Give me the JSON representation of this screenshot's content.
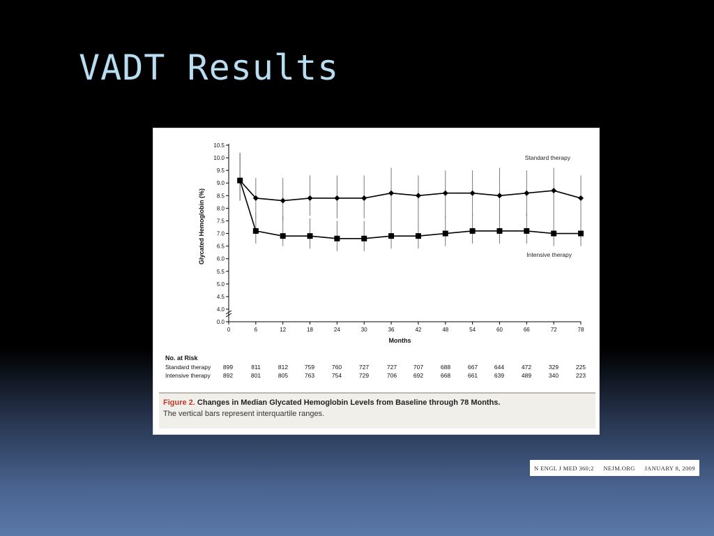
{
  "slide": {
    "title": "VADT Results"
  },
  "figure": {
    "caption_label": "Figure 2.",
    "caption_title": "Changes in Median Glycated Hemoglobin Levels from Baseline through 78 Months.",
    "caption_note": "The vertical bars represent interquartile ranges."
  },
  "chart_data": {
    "type": "line",
    "title": "",
    "xlabel": "Months",
    "ylabel": "Glycated Hemoglobin (%)",
    "xlim": [
      0,
      78
    ],
    "x_ticks": [
      0,
      6,
      12,
      18,
      24,
      30,
      36,
      42,
      48,
      54,
      60,
      66,
      72,
      78
    ],
    "y_ticks": [
      0.0,
      4.0,
      4.5,
      5.0,
      5.5,
      6.0,
      6.5,
      7.0,
      7.5,
      8.0,
      8.5,
      9.0,
      9.5,
      10.0,
      10.5
    ],
    "y_tick_labels": [
      "0.0",
      "4.0",
      "4.5",
      "5.0",
      "5.5",
      "6.0",
      "6.5",
      "7.0",
      "7.5",
      "8.0",
      "8.5",
      "9.0",
      "9.5",
      "10.0",
      "10.5"
    ],
    "axis_break": [
      0.0,
      4.0
    ],
    "grid": false,
    "series": [
      {
        "name": "Standard therapy",
        "marker": "diamond",
        "x": [
          2.5,
          6,
          12,
          18,
          24,
          30,
          36,
          42,
          48,
          54,
          60,
          66,
          72,
          78
        ],
        "y": [
          9.1,
          8.4,
          8.3,
          8.4,
          8.4,
          8.4,
          8.6,
          8.5,
          8.6,
          8.6,
          8.5,
          8.6,
          8.7,
          8.4
        ],
        "iqr_low": [
          8.3,
          7.6,
          7.5,
          7.7,
          7.6,
          7.6,
          7.7,
          7.7,
          7.6,
          7.7,
          7.6,
          7.7,
          7.8,
          7.6
        ],
        "iqr_high": [
          10.2,
          9.2,
          9.2,
          9.3,
          9.3,
          9.3,
          9.6,
          9.3,
          9.5,
          9.5,
          9.6,
          9.5,
          9.6,
          9.3
        ]
      },
      {
        "name": "Intensive therapy",
        "marker": "square",
        "x": [
          2.5,
          6,
          12,
          18,
          24,
          30,
          36,
          42,
          48,
          54,
          60,
          66,
          72,
          78
        ],
        "y": [
          9.1,
          7.1,
          6.9,
          6.9,
          6.8,
          6.8,
          6.9,
          6.9,
          7.0,
          7.1,
          7.1,
          7.1,
          7.0,
          7.0
        ],
        "iqr_low": [
          8.3,
          6.6,
          6.5,
          6.4,
          6.3,
          6.3,
          6.4,
          6.4,
          6.5,
          6.6,
          6.6,
          6.6,
          6.5,
          6.5
        ],
        "iqr_high": [
          10.2,
          7.8,
          7.7,
          7.6,
          7.5,
          7.5,
          7.7,
          7.7,
          7.7,
          7.8,
          7.8,
          7.8,
          7.8,
          7.8
        ]
      }
    ],
    "risk_table": {
      "title": "No. at Risk",
      "rows": [
        {
          "label": "Standard therapy",
          "values": [
            "899",
            "811",
            "812",
            "759",
            "760",
            "727",
            "727",
            "707",
            "688",
            "667",
            "644",
            "472",
            "329",
            "225"
          ]
        },
        {
          "label": "Intensive therapy",
          "values": [
            "892",
            "801",
            "805",
            "763",
            "754",
            "729",
            "706",
            "692",
            "668",
            "661",
            "639",
            "489",
            "340",
            "223"
          ]
        }
      ]
    }
  },
  "citation": {
    "journal": "N ENGL J MED 360;2",
    "site": "NEJM.ORG",
    "date": "JANUARY 8, 2009"
  }
}
